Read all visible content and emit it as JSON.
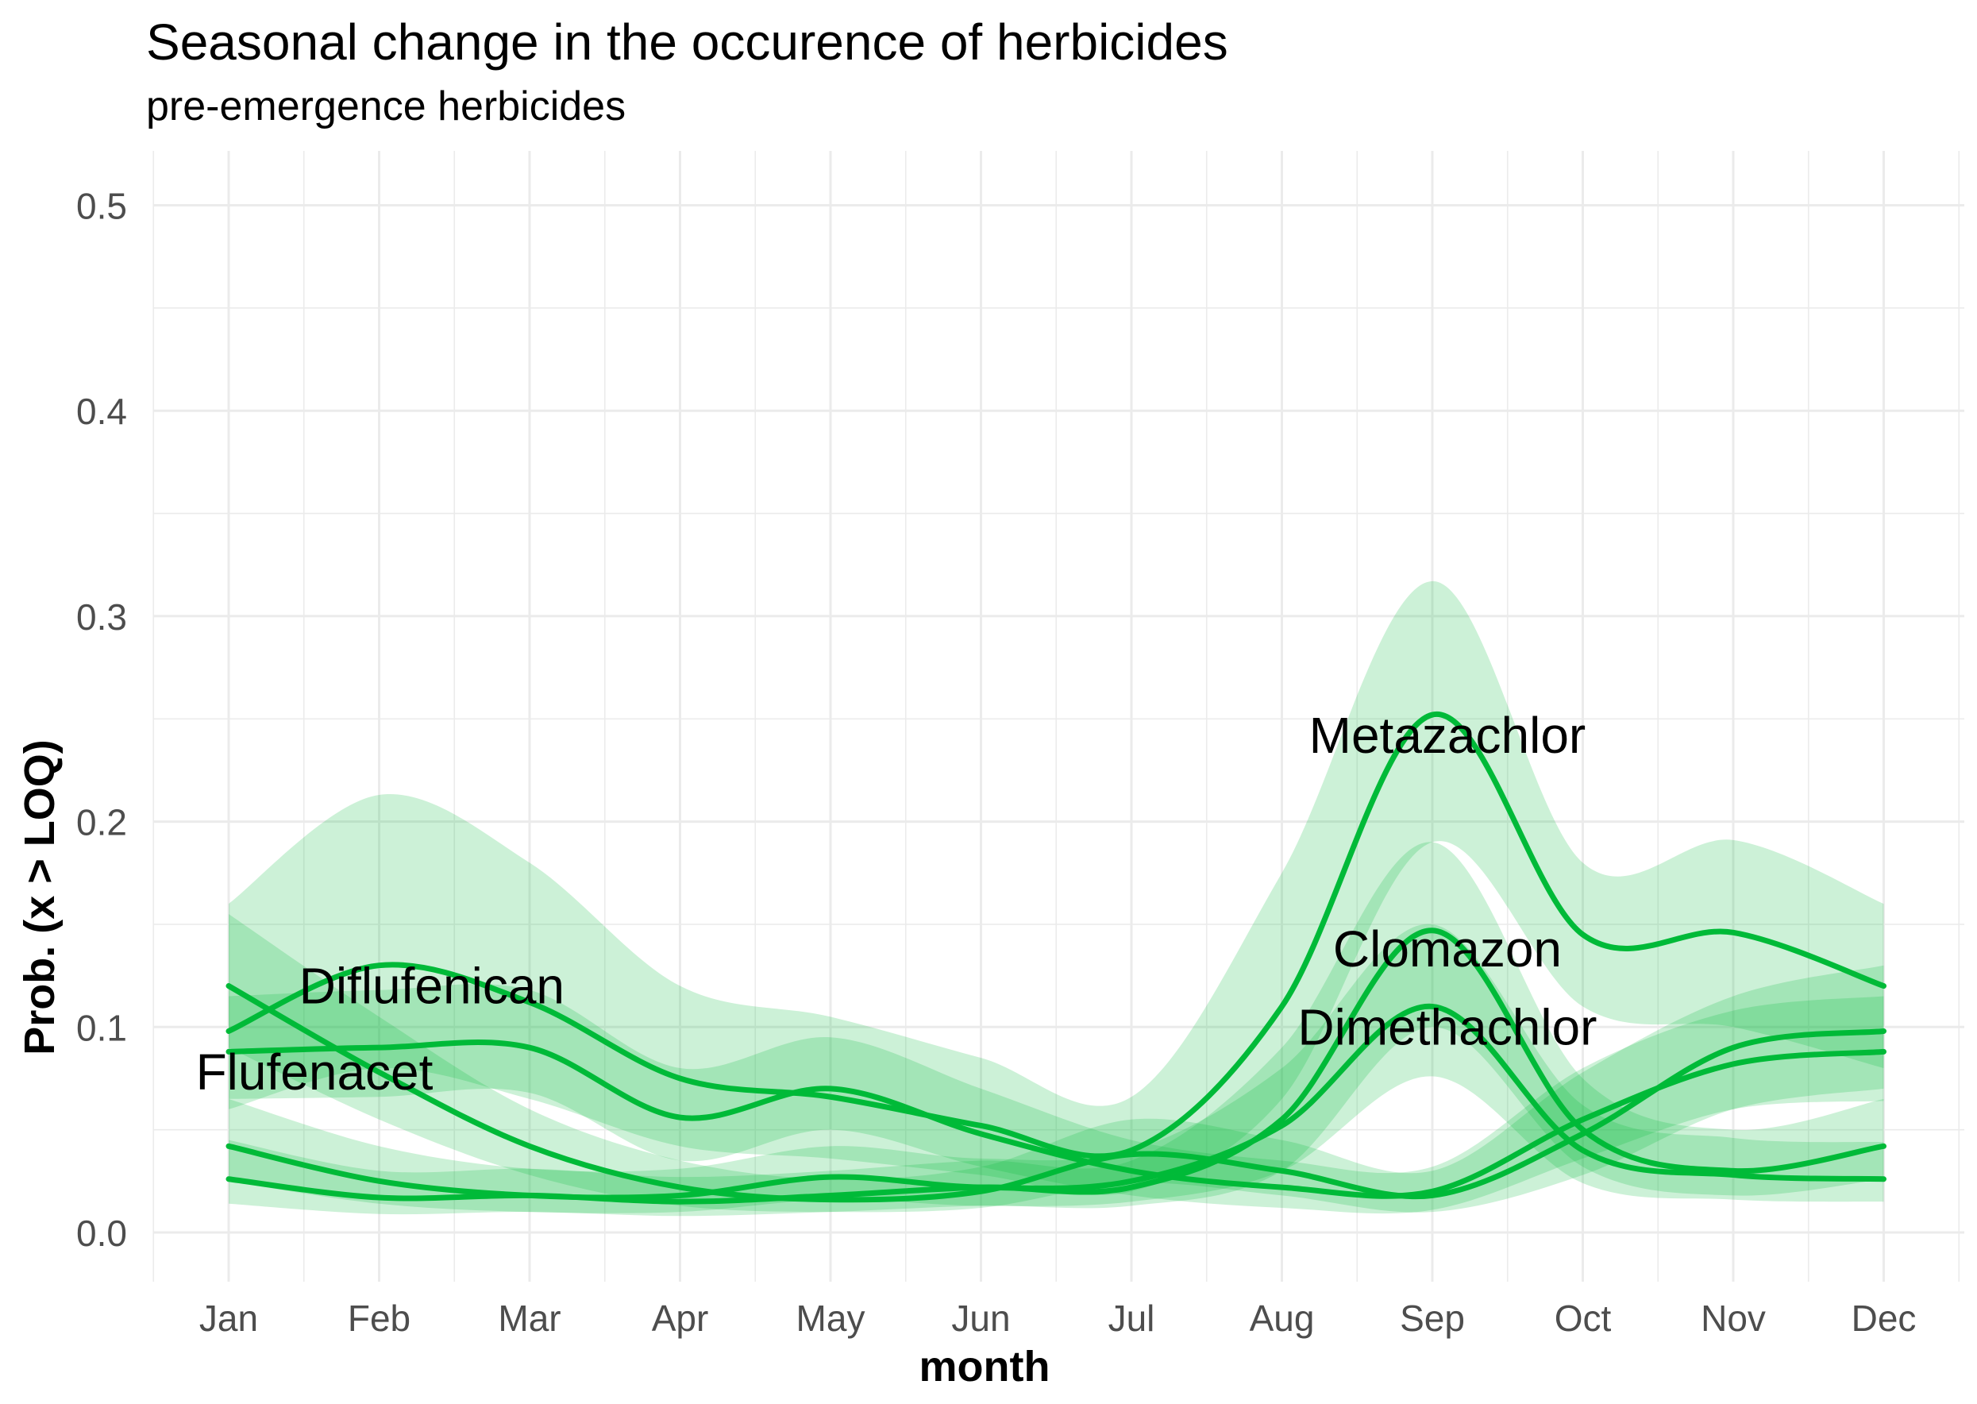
{
  "chart_data": {
    "type": "line",
    "title": "Seasonal change in the occurence of herbicides",
    "subtitle": "pre-emergence herbicides",
    "xlabel": "month",
    "ylabel": "Prob. (x > LOQ)",
    "categories": [
      "Jan",
      "Feb",
      "Mar",
      "Apr",
      "May",
      "Jun",
      "Jul",
      "Aug",
      "Sep",
      "Oct",
      "Nov",
      "Dec"
    ],
    "x": [
      1,
      2,
      3,
      4,
      5,
      6,
      7,
      8,
      9,
      10,
      11,
      12
    ],
    "ylim": [
      0,
      0.52
    ],
    "xlim": [
      0.5,
      12.5
    ],
    "yticks": [
      0.0,
      0.1,
      0.2,
      0.3,
      0.4,
      0.5
    ],
    "ytick_labels": [
      "0.0",
      "0.1",
      "0.2",
      "0.3",
      "0.4",
      "0.5"
    ],
    "grid": true,
    "color": "#00BA38",
    "band_color": "#00BA38",
    "series": [
      {
        "name": "Metazachlor",
        "values": [
          0.098,
          0.13,
          0.112,
          0.075,
          0.066,
          0.052,
          0.04,
          0.11,
          0.252,
          0.145,
          0.146,
          0.12
        ],
        "lower": [
          0.06,
          0.08,
          0.065,
          0.042,
          0.036,
          0.028,
          0.02,
          0.065,
          0.19,
          0.11,
          0.1,
          0.08
        ],
        "upper": [
          0.16,
          0.213,
          0.18,
          0.12,
          0.105,
          0.085,
          0.066,
          0.175,
          0.317,
          0.18,
          0.191,
          0.16
        ]
      },
      {
        "name": "Clomazon",
        "values": [
          0.026,
          0.017,
          0.018,
          0.015,
          0.018,
          0.022,
          0.022,
          0.055,
          0.147,
          0.05,
          0.03,
          0.042
        ],
        "lower": [
          0.014,
          0.009,
          0.01,
          0.008,
          0.01,
          0.013,
          0.013,
          0.03,
          0.1,
          0.032,
          0.018,
          0.026
        ],
        "upper": [
          0.045,
          0.03,
          0.031,
          0.027,
          0.03,
          0.035,
          0.035,
          0.09,
          0.19,
          0.075,
          0.05,
          0.065
        ]
      },
      {
        "name": "Dimethachlor",
        "values": [
          0.042,
          0.025,
          0.018,
          0.018,
          0.027,
          0.022,
          0.025,
          0.052,
          0.11,
          0.04,
          0.028,
          0.026
        ],
        "lower": [
          0.025,
          0.014,
          0.01,
          0.01,
          0.016,
          0.013,
          0.015,
          0.03,
          0.076,
          0.024,
          0.016,
          0.015
        ],
        "upper": [
          0.065,
          0.042,
          0.031,
          0.031,
          0.042,
          0.036,
          0.04,
          0.08,
          0.15,
          0.062,
          0.046,
          0.044
        ]
      },
      {
        "name": "Diflufenican",
        "values": [
          0.12,
          0.078,
          0.042,
          0.022,
          0.016,
          0.02,
          0.038,
          0.03,
          0.018,
          0.048,
          0.09,
          0.098
        ],
        "lower": [
          0.09,
          0.055,
          0.028,
          0.013,
          0.01,
          0.012,
          0.024,
          0.018,
          0.01,
          0.028,
          0.06,
          0.07
        ],
        "upper": [
          0.155,
          0.105,
          0.06,
          0.035,
          0.026,
          0.032,
          0.055,
          0.045,
          0.03,
          0.078,
          0.115,
          0.13
        ]
      },
      {
        "name": "Flufenacet",
        "values": [
          0.088,
          0.09,
          0.09,
          0.056,
          0.07,
          0.048,
          0.03,
          0.022,
          0.02,
          0.055,
          0.082,
          0.088
        ],
        "lower": [
          0.065,
          0.066,
          0.068,
          0.035,
          0.05,
          0.032,
          0.018,
          0.012,
          0.011,
          0.036,
          0.06,
          0.064
        ],
        "upper": [
          0.115,
          0.118,
          0.118,
          0.08,
          0.095,
          0.07,
          0.045,
          0.035,
          0.032,
          0.08,
          0.108,
          0.115
        ]
      }
    ],
    "annotations": [
      {
        "text": "Metazachlor",
        "x": 9.1,
        "y": 0.242
      },
      {
        "text": "Clomazon",
        "x": 9.1,
        "y": 0.138
      },
      {
        "text": "Dimethachlor",
        "x": 9.1,
        "y": 0.1
      },
      {
        "text": "Diflufenican",
        "x": 2.35,
        "y": 0.12
      },
      {
        "text": "Flufenacet",
        "x": 1.57,
        "y": 0.078
      }
    ]
  }
}
